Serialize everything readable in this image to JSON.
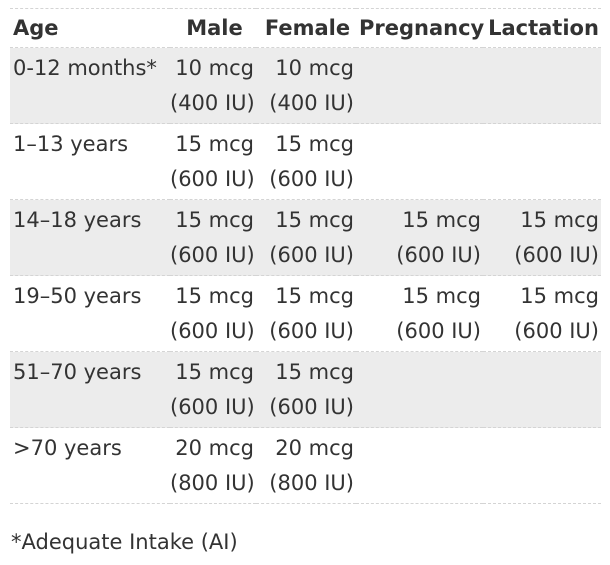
{
  "table": {
    "headers": [
      "Age",
      "Male",
      "Female",
      "Pregnancy",
      "Lactation"
    ],
    "rows": [
      {
        "age": "0-12 months*",
        "male": [
          "10 mcg",
          "(400 IU)"
        ],
        "female": [
          "10 mcg",
          "(400 IU)"
        ],
        "pregnancy": [
          "",
          ""
        ],
        "lactation": [
          "",
          ""
        ]
      },
      {
        "age": "1–13 years",
        "male": [
          "15 mcg",
          "(600 IU)"
        ],
        "female": [
          "15 mcg",
          "(600 IU)"
        ],
        "pregnancy": [
          "",
          ""
        ],
        "lactation": [
          "",
          ""
        ]
      },
      {
        "age": "14–18 years",
        "male": [
          "15 mcg",
          "(600 IU)"
        ],
        "female": [
          "15 mcg",
          "(600 IU)"
        ],
        "pregnancy": [
          "15 mcg",
          "(600 IU)"
        ],
        "lactation": [
          "15 mcg",
          "(600 IU)"
        ]
      },
      {
        "age": "19–50 years",
        "male": [
          "15 mcg",
          "(600 IU)"
        ],
        "female": [
          "15 mcg",
          "(600 IU)"
        ],
        "pregnancy": [
          "15 mcg",
          "(600 IU)"
        ],
        "lactation": [
          "15 mcg",
          "(600 IU)"
        ]
      },
      {
        "age": "51–70 years",
        "male": [
          "15 mcg",
          "(600 IU)"
        ],
        "female": [
          "15 mcg",
          "(600 IU)"
        ],
        "pregnancy": [
          "",
          ""
        ],
        "lactation": [
          "",
          ""
        ]
      },
      {
        "age": ">70 years",
        "male": [
          "20 mcg",
          "(800 IU)"
        ],
        "female": [
          "20 mcg",
          "(800 IU)"
        ],
        "pregnancy": [
          "",
          ""
        ],
        "lactation": [
          "",
          ""
        ]
      }
    ]
  },
  "footnote": "*Adequate Intake (AI)",
  "colors": {
    "text": "#333333",
    "shaded_row": "#ececec",
    "divider": "#d4d4d4"
  }
}
